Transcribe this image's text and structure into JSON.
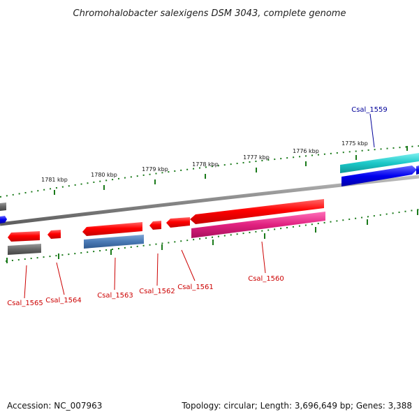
{
  "title": "Chromohalobacter salexigens DSM 3043, complete genome",
  "footer": {
    "accession": "Accession: NC_007963",
    "summary": "Topology: circular; Length: 3,696,649 bp; Genes: 3,388"
  },
  "colors": {
    "backbone": "#8a8a8a",
    "tick": "#1a7a1a",
    "label_reverse": "#cc0000",
    "label_forward": "#000099",
    "reverse_cds": "#ff0000",
    "forward_cds": "#0000ee",
    "gray_feature": "#666666",
    "steelblue_feature": "#4a7ab5",
    "magenta_feature": "#e0207f",
    "cyan_feature": "#1cc8c8"
  },
  "kbp_labels": [
    "1781 kbp",
    "1780 kbp",
    "1779 kbp",
    "1778 kbp",
    "1777 kbp",
    "1776 kbp",
    "1775 kbp"
  ],
  "genes": [
    {
      "name": "Csal_1565",
      "strand": "reverse"
    },
    {
      "name": "Csal_1564",
      "strand": "reverse"
    },
    {
      "name": "Csal_1563",
      "strand": "reverse"
    },
    {
      "name": "Csal_1562",
      "strand": "reverse"
    },
    {
      "name": "Csal_1561",
      "strand": "reverse"
    },
    {
      "name": "Csal_1560",
      "strand": "reverse"
    },
    {
      "name": "Csal_1559",
      "strand": "forward"
    }
  ]
}
